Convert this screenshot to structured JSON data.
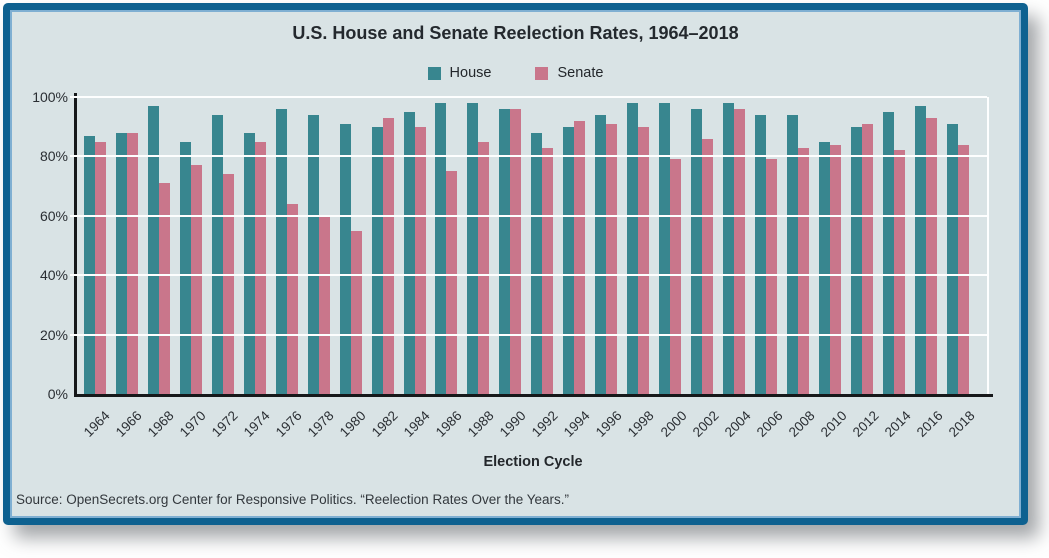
{
  "card": {
    "title": "U.S. House and Senate Reelection Rates, 1964–2018",
    "x_axis_title": "Election Cycle",
    "source": "Source: OpenSecrets.org Center for Responsive Politics. “Reelection Rates Over the Years.”"
  },
  "legend": {
    "items": [
      {
        "label": "House",
        "color": "#38868f"
      },
      {
        "label": "Senate",
        "color": "#c9768b"
      }
    ]
  },
  "colors": {
    "house": "#38868f",
    "senate": "#c9768b",
    "card_background": "#d9e3e5",
    "frame_border": "#0e6190",
    "frame_inner_line": "#7fafd2",
    "gridline": "#fdfefe",
    "axis": "#16181a"
  },
  "chart_data": {
    "type": "bar",
    "title": "U.S. House and Senate Reelection Rates, 1964–2018",
    "xlabel": "Election Cycle",
    "ylabel": "",
    "categories": [
      "1964",
      "1966",
      "1968",
      "1970",
      "1972",
      "1974",
      "1976",
      "1978",
      "1980",
      "1982",
      "1984",
      "1986",
      "1988",
      "1990",
      "1992",
      "1994",
      "1996",
      "1998",
      "2000",
      "2002",
      "2004",
      "2006",
      "2008",
      "2010",
      "2012",
      "2014",
      "2016",
      "2018"
    ],
    "series": [
      {
        "name": "House",
        "color": "#38868f",
        "values": [
          87,
          88,
          97,
          85,
          94,
          88,
          96,
          94,
          91,
          90,
          95,
          98,
          98,
          96,
          88,
          90,
          94,
          98,
          98,
          96,
          98,
          94,
          94,
          85,
          90,
          95,
          97,
          91
        ]
      },
      {
        "name": "Senate",
        "color": "#c9768b",
        "values": [
          85,
          88,
          71,
          77,
          74,
          85,
          64,
          60,
          55,
          93,
          90,
          75,
          85,
          96,
          83,
          92,
          91,
          90,
          79,
          86,
          96,
          79,
          83,
          84,
          91,
          82,
          93,
          84
        ]
      }
    ],
    "ylim": [
      0,
      100
    ],
    "yticks": [
      0,
      20,
      40,
      60,
      80,
      100
    ],
    "ytick_labels": [
      "0%",
      "20%",
      "40%",
      "60%",
      "80%",
      "100%"
    ],
    "grid": true,
    "legend_position": "top"
  }
}
